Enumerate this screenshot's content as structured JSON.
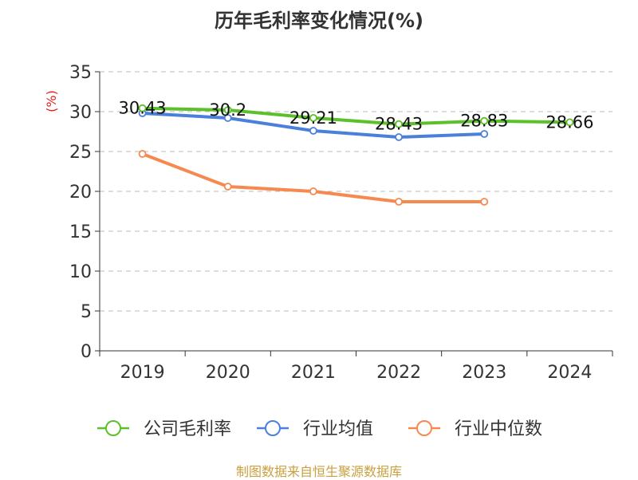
{
  "chart_data": {
    "type": "line",
    "title": "历年毛利率变化情况(%)",
    "ylabel": "(%)",
    "xlabel": "",
    "categories": [
      "2019",
      "2020",
      "2021",
      "2022",
      "2023",
      "2024"
    ],
    "ylim": [
      0,
      35
    ],
    "yticks": [
      0,
      5,
      10,
      15,
      20,
      25,
      30,
      35
    ],
    "grid": true,
    "legend_position": "bottom",
    "series": [
      {
        "name": "公司毛利率",
        "color": "#5bc02a",
        "values": [
          30.43,
          30.2,
          29.21,
          28.43,
          28.83,
          28.66
        ],
        "labels": [
          "30.43",
          "30.2",
          "29.21",
          "28.43",
          "28.83",
          "28.66"
        ]
      },
      {
        "name": "行业均值",
        "color": "#4a7fdc",
        "values": [
          29.8,
          29.2,
          27.6,
          26.8,
          27.2,
          null
        ]
      },
      {
        "name": "行业中位数",
        "color": "#f5894f",
        "values": [
          24.7,
          20.6,
          20.0,
          18.7,
          18.7,
          null
        ]
      }
    ]
  },
  "source": "制图数据来自恒生聚源数据库"
}
